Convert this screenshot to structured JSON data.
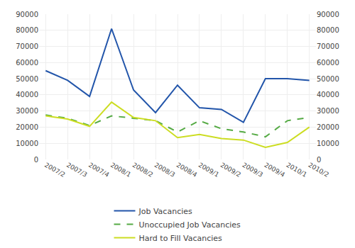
{
  "chart_data": {
    "type": "line",
    "categories": [
      "2007/2",
      "2007/3",
      "2007/4",
      "2008/1",
      "2008/2",
      "2008/3",
      "2008/4",
      "2009/1",
      "2009/2",
      "2009/3",
      "2009/4",
      "2010/1",
      "2010/2"
    ],
    "series": [
      {
        "name": "Job Vacancies",
        "color": "#2255AA",
        "line_style": "solid",
        "values": [
          55000,
          49000,
          39000,
          81000,
          43000,
          29000,
          46000,
          32000,
          31000,
          23000,
          50000,
          50000,
          49000
        ]
      },
      {
        "name": "Unoccupied Job Vacancies",
        "color": "#55AA44",
        "line_style": "dashed",
        "values": [
          27500,
          25500,
          21000,
          27000,
          25500,
          24000,
          17000,
          24000,
          19000,
          17000,
          14000,
          24000,
          26000
        ]
      },
      {
        "name": "Hard to Fill Vacancies",
        "color": "#CCDD22",
        "line_style": "solid",
        "values": [
          27000,
          25000,
          20500,
          35500,
          26000,
          24000,
          13500,
          15500,
          13000,
          12000,
          7500,
          10500,
          20000
        ]
      }
    ],
    "ylim": [
      0,
      90000
    ],
    "yticks": [
      0,
      10000,
      20000,
      30000,
      40000,
      50000,
      60000,
      70000,
      80000,
      90000
    ],
    "y2lim": [
      0,
      90000
    ],
    "y2ticks": [
      0,
      10000,
      20000,
      30000,
      40000,
      50000,
      60000,
      70000,
      80000,
      90000
    ],
    "grid": true,
    "legend": "bottom"
  }
}
